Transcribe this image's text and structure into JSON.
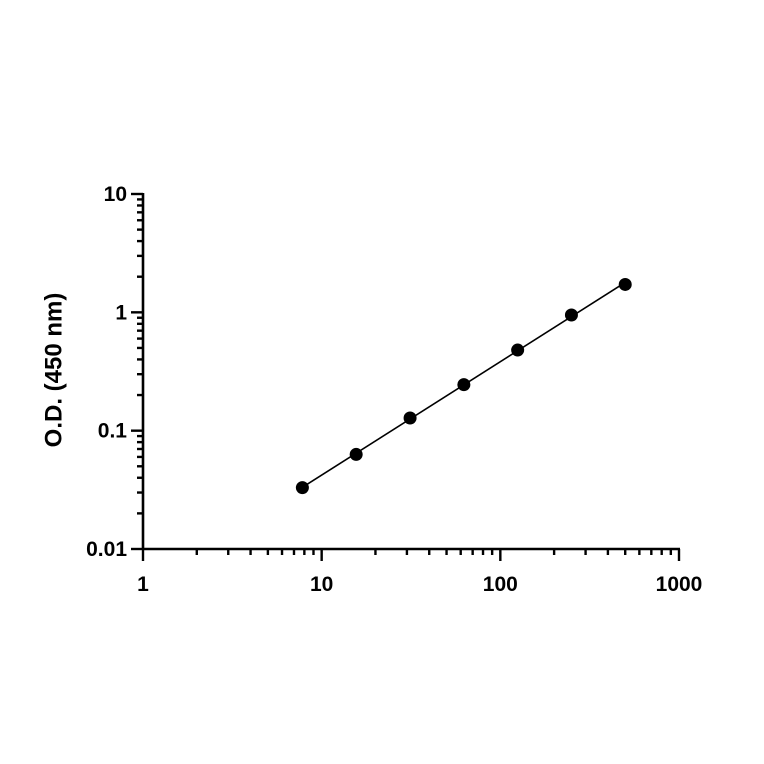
{
  "chart_data": {
    "type": "scatter",
    "title": "",
    "xlabel": "",
    "ylabel": "O.D. (450 nm)",
    "xscale": "log",
    "yscale": "log",
    "xlim": [
      1,
      1000
    ],
    "ylim": [
      0.01,
      10
    ],
    "grid": false,
    "legend": "none",
    "x_tick_labels": [
      "1",
      "10",
      "100",
      "1000"
    ],
    "y_tick_labels": [
      "0.01",
      "0.1",
      "1",
      "10"
    ],
    "series": [
      {
        "x": [
          7.8,
          15.6,
          31.25,
          62.5,
          125,
          250,
          500
        ],
        "y": [
          0.033,
          0.063,
          0.128,
          0.245,
          0.48,
          0.95,
          1.72
        ],
        "marker_color": "#000000",
        "line_color": "#000000",
        "fit": "linear (log-log)"
      }
    ]
  }
}
